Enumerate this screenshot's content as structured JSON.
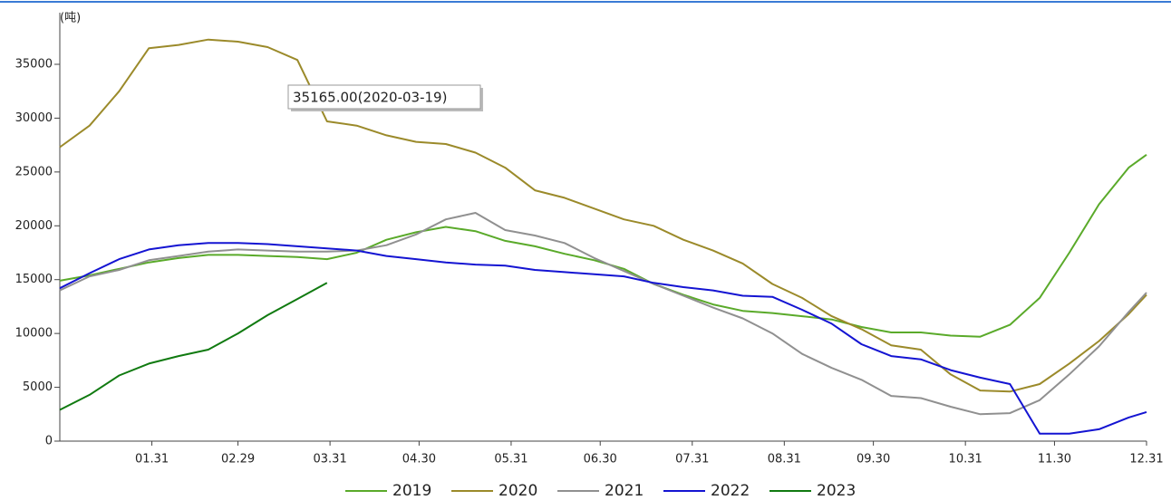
{
  "chart_data": {
    "type": "line",
    "y_axis_label": "(吨)",
    "annotation": "35165.00(2020-03-19)",
    "x": [
      0,
      10,
      20,
      30,
      40,
      50,
      60,
      70,
      80,
      90,
      100,
      110,
      120,
      130,
      140,
      150,
      160,
      170,
      180,
      190,
      200,
      210,
      220,
      230,
      240,
      250,
      260,
      270,
      280,
      290,
      300,
      310,
      320,
      330,
      340,
      350,
      360,
      366
    ],
    "xlim": [
      0,
      366
    ],
    "xticks": [
      {
        "value": 31,
        "label": "01.31"
      },
      {
        "value": 60,
        "label": "02.29"
      },
      {
        "value": 91,
        "label": "03.31"
      },
      {
        "value": 121,
        "label": "04.30"
      },
      {
        "value": 152,
        "label": "05.31"
      },
      {
        "value": 182,
        "label": "06.30"
      },
      {
        "value": 213,
        "label": "07.31"
      },
      {
        "value": 244,
        "label": "08.31"
      },
      {
        "value": 274,
        "label": "09.30"
      },
      {
        "value": 305,
        "label": "10.31"
      },
      {
        "value": 335,
        "label": "11.30"
      },
      {
        "value": 366,
        "label": "12.31"
      }
    ],
    "ylim": [
      0,
      39300
    ],
    "yticks": [
      0,
      5000,
      10000,
      15000,
      20000,
      25000,
      30000,
      35000
    ],
    "series": [
      {
        "name": "2019",
        "color": "#5aaa2a",
        "values": [
          14900,
          15400,
          16000,
          16600,
          17000,
          17300,
          17300,
          17200,
          17100,
          16900,
          17500,
          18700,
          19400,
          19900,
          19500,
          18600,
          18100,
          17400,
          16800,
          16000,
          14600,
          13600,
          12700,
          12100,
          11900,
          11600,
          11300,
          10600,
          10100,
          10100,
          9800,
          9700,
          10800,
          13300,
          17500,
          22000,
          25400,
          26600
        ]
      },
      {
        "name": "2020",
        "color": "#9b8a2a",
        "values": [
          27300,
          29300,
          32500,
          36500,
          36800,
          37300,
          37100,
          36600,
          35400,
          29700,
          29300,
          28400,
          27800,
          27600,
          26800,
          25400,
          23300,
          22600,
          21600,
          20600,
          20000,
          18700,
          17700,
          16500,
          14600,
          13300,
          11600,
          10400,
          8900,
          8500,
          6200,
          4700,
          4600,
          5300,
          7200,
          9300,
          11800,
          13600
        ]
      },
      {
        "name": "2021",
        "color": "#909090",
        "values": [
          14000,
          15300,
          15900,
          16800,
          17200,
          17600,
          17800,
          17700,
          17600,
          17600,
          17700,
          18200,
          19200,
          20600,
          21200,
          19600,
          19100,
          18400,
          17000,
          15800,
          14600,
          13500,
          12400,
          11400,
          10000,
          8100,
          6800,
          5700,
          4200,
          4000,
          3200,
          2500,
          2600,
          3800,
          6200,
          8800,
          12000,
          13800
        ]
      },
      {
        "name": "2022",
        "color": "#1414d2",
        "values": [
          14200,
          15600,
          16900,
          17800,
          18200,
          18400,
          18400,
          18300,
          18100,
          17900,
          17700,
          17200,
          16900,
          16600,
          16400,
          16300,
          15900,
          15700,
          15500,
          15300,
          14700,
          14300,
          14000,
          13500,
          13400,
          12200,
          10900,
          9000,
          7900,
          7600,
          6600,
          5900,
          5300,
          700,
          700,
          1100,
          2200,
          2700
        ]
      },
      {
        "name": "2023",
        "color": "#107a10",
        "values": [
          2900,
          4300,
          6100,
          7200,
          7900,
          8500,
          10000,
          11700,
          13200,
          14700,
          null,
          null,
          null,
          null,
          null,
          null,
          null,
          null,
          null,
          null,
          null,
          null,
          null,
          null,
          null,
          null,
          null,
          null,
          null,
          null,
          null,
          null,
          null,
          null,
          null,
          null,
          null,
          null
        ]
      }
    ]
  }
}
